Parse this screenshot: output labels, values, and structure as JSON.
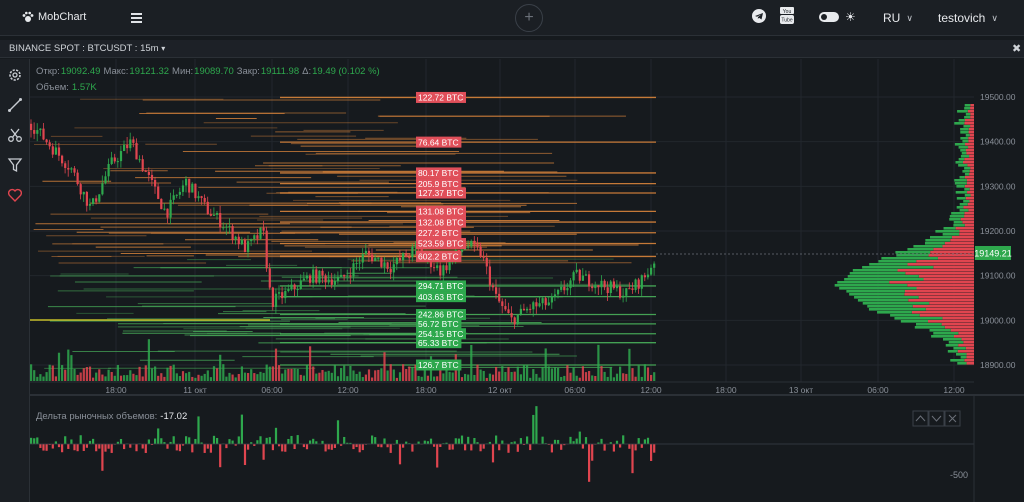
{
  "app": {
    "name": "MobChart"
  },
  "topbar": {
    "language": "RU",
    "username": "testovich"
  },
  "chart": {
    "symbol": "BINANCE SPOT : BTCUSDT : 15m",
    "ohlc": [
      {
        "label": "Откр:",
        "value": "19092.49"
      },
      {
        "label": "Макс:",
        "value": "19121.32"
      },
      {
        "label": "Мин:",
        "value": "19089.70"
      },
      {
        "label": "Закр:",
        "value": "19111.98"
      },
      {
        "label": "Δ:",
        "value": "19.49 (0.102 %)"
      }
    ],
    "volume": {
      "label": "Объем:",
      "value": "1.57K"
    },
    "last_price": "19149.21",
    "price_axis": [
      "19500.00",
      "19400.00",
      "19300.00",
      "19200.00",
      "19100.00",
      "19000.00",
      "18900.00"
    ],
    "time_axis": [
      "18:00",
      "11 окт",
      "06:00",
      "12:00",
      "18:00",
      "12 окт",
      "06:00",
      "12:00",
      "18:00",
      "13 окт",
      "06:00",
      "12:00"
    ],
    "order_labels": [
      {
        "text": "122.72 BTC",
        "side": "ask",
        "price": 19499
      },
      {
        "text": "76.64 BTC",
        "side": "ask",
        "price": 19399
      },
      {
        "text": "80.17 BTC",
        "side": "ask",
        "price": 19330
      },
      {
        "text": "205.9 BTC",
        "side": "ask",
        "price": 19306
      },
      {
        "text": "127.37 BTC",
        "side": "ask",
        "price": 19285
      },
      {
        "text": "131.08 BTC",
        "side": "ask",
        "price": 19244
      },
      {
        "text": "132.08 BTC",
        "side": "ask",
        "price": 19220
      },
      {
        "text": "227.2 BTC",
        "side": "ask",
        "price": 19196
      },
      {
        "text": "523.59 BTC",
        "side": "ask",
        "price": 19172
      },
      {
        "text": "602.2 BTC",
        "side": "ask",
        "price": 19143
      },
      {
        "text": "294.71 BTC",
        "side": "bid",
        "price": 19077
      },
      {
        "text": "403.63 BTC",
        "side": "bid",
        "price": 19053
      },
      {
        "text": "242.86 BTC",
        "side": "bid",
        "price": 19013
      },
      {
        "text": "56.72 BTC",
        "side": "bid",
        "price": 18992
      },
      {
        "text": "254.15 BTC",
        "side": "bid",
        "price": 18970
      },
      {
        "text": "65.33 BTC",
        "side": "bid",
        "price": 18950
      },
      {
        "text": "126.7 BTC",
        "side": "bid",
        "price": 18900
      }
    ]
  },
  "delta": {
    "label": "Дельта рыночных объемов:",
    "value": "-17.02",
    "axis_label": "-500"
  },
  "colors": {
    "bg": "#161a1e",
    "up": "#2ea84d",
    "down": "#e0454f",
    "ask_label": "#e04f5a",
    "bid_label": "#2ea84d",
    "ask_line": "#d9843b",
    "bid_line": "#49b05a",
    "yellow_line": "#e6dc2a",
    "text_muted": "#8a9099"
  }
}
